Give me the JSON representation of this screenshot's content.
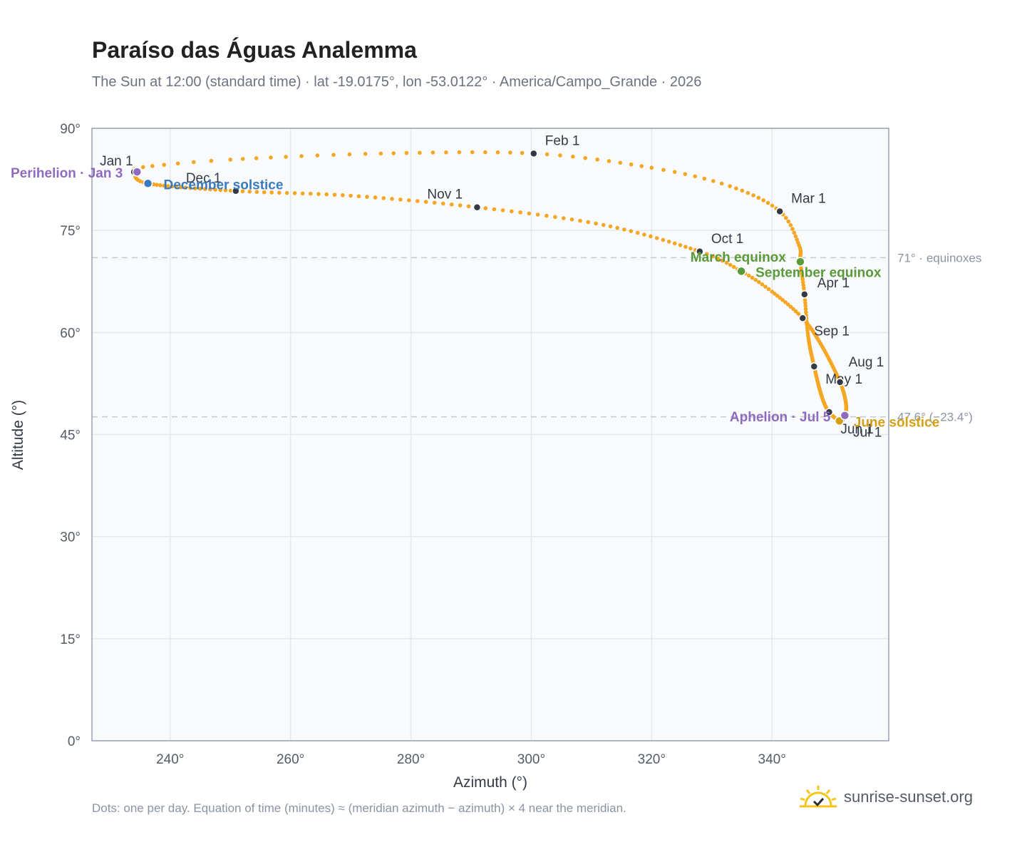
{
  "header": {
    "title": "Paraíso das Águas Analemma",
    "subtitle": "The Sun at 12:00 (standard time) · lat -19.0175°, lon -53.0122° · America/Campo_Grande · 2026"
  },
  "footer": {
    "note": "Dots: one per day. Equation of time (minutes) ≈ (meridian azimuth − azimuth) × 4 near the meridian.",
    "brand": "sunrise-sunset.org"
  },
  "colors": {
    "curve": "#f5a623",
    "month_marker": "#333a44",
    "equinox": "#5a9a3a",
    "december_solstice": "#3a7abf",
    "june_solstice": "#d4a017",
    "apsis": "#8e6bbf",
    "plot_bg": "#f8fafc",
    "grid": "#e5e9ef",
    "reference_line": "#c4c9d0"
  },
  "chart_data": {
    "type": "scatter",
    "xlabel": "Azimuth (°)",
    "ylabel": "Altitude (°)",
    "xlim": [
      227.0,
      359.4
    ],
    "ylim": [
      0,
      90
    ],
    "x_ticks": [
      240,
      260,
      280,
      300,
      320,
      340
    ],
    "x_tick_labels": [
      "240°",
      "260°",
      "280°",
      "300°",
      "320°",
      "340°"
    ],
    "y_ticks": [
      0,
      15,
      30,
      45,
      60,
      75,
      90
    ],
    "y_tick_labels": [
      "0°",
      "15°",
      "30°",
      "45°",
      "60°",
      "75°",
      "90°"
    ],
    "grid": true,
    "legend": "none",
    "curve_anchors": [
      {
        "day": 1,
        "az": 234.0,
        "alt": 83.6
      },
      {
        "day": 4,
        "az": 235.5,
        "alt": 84.3
      },
      {
        "day": 10,
        "az": 250.0,
        "alt": 85.4
      },
      {
        "day": 20,
        "az": 275.0,
        "alt": 86.3
      },
      {
        "day": 32,
        "az": 300.4,
        "alt": 86.3
      },
      {
        "day": 42,
        "az": 320.0,
        "alt": 84.2
      },
      {
        "day": 50,
        "az": 333.0,
        "alt": 81.5
      },
      {
        "day": 60,
        "az": 341.3,
        "alt": 77.8
      },
      {
        "day": 70,
        "az": 344.5,
        "alt": 72.8
      },
      {
        "day": 79,
        "az": 344.7,
        "alt": 70.4
      },
      {
        "day": 91,
        "az": 345.4,
        "alt": 65.6
      },
      {
        "day": 105,
        "az": 346.0,
        "alt": 59.5
      },
      {
        "day": 121,
        "az": 347.0,
        "alt": 55.0
      },
      {
        "day": 140,
        "az": 348.3,
        "alt": 50.5
      },
      {
        "day": 152,
        "az": 349.5,
        "alt": 48.3
      },
      {
        "day": 172,
        "az": 351.2,
        "alt": 47.0
      },
      {
        "day": 182,
        "az": 351.6,
        "alt": 47.2
      },
      {
        "day": 186,
        "az": 352.1,
        "alt": 47.8
      },
      {
        "day": 200,
        "az": 352.3,
        "alt": 49.5
      },
      {
        "day": 213,
        "az": 351.3,
        "alt": 52.7
      },
      {
        "day": 230,
        "az": 348.3,
        "alt": 58.0
      },
      {
        "day": 244,
        "az": 345.1,
        "alt": 62.1
      },
      {
        "day": 256,
        "az": 340.0,
        "alt": 66.0
      },
      {
        "day": 265,
        "az": 334.9,
        "alt": 69.0
      },
      {
        "day": 274,
        "az": 328.0,
        "alt": 71.9
      },
      {
        "day": 290,
        "az": 312.0,
        "alt": 75.8
      },
      {
        "day": 305,
        "az": 291.0,
        "alt": 78.4
      },
      {
        "day": 320,
        "az": 270.0,
        "alt": 80.1
      },
      {
        "day": 335,
        "az": 250.9,
        "alt": 80.8
      },
      {
        "day": 355,
        "az": 236.3,
        "alt": 81.9
      },
      {
        "day": 365,
        "az": 234.0,
        "alt": 83.6
      }
    ],
    "month_markers": [
      {
        "label": "Jan 1",
        "az": 234.0,
        "alt": 83.6
      },
      {
        "label": "Feb 1",
        "az": 300.4,
        "alt": 86.3
      },
      {
        "label": "Mar 1",
        "az": 341.3,
        "alt": 77.8
      },
      {
        "label": "Apr 1",
        "az": 345.4,
        "alt": 65.6
      },
      {
        "label": "May 1",
        "az": 347.0,
        "alt": 55.0
      },
      {
        "label": "Jun 1",
        "az": 349.5,
        "alt": 48.3
      },
      {
        "label": "Jul 1",
        "az": 351.6,
        "alt": 47.2
      },
      {
        "label": "Aug 1",
        "az": 351.3,
        "alt": 52.7
      },
      {
        "label": "Sep 1",
        "az": 345.1,
        "alt": 62.1
      },
      {
        "label": "Oct 1",
        "az": 328.0,
        "alt": 71.9
      },
      {
        "label": "Nov 1",
        "az": 291.0,
        "alt": 78.4
      },
      {
        "label": "Dec 1",
        "az": 250.9,
        "alt": 80.8
      }
    ],
    "events": [
      {
        "label": "March equinox",
        "az": 344.7,
        "alt": 70.4
      },
      {
        "label": "September equinox",
        "az": 334.9,
        "alt": 69.0
      },
      {
        "label": "December solstice",
        "az": 236.3,
        "alt": 81.9
      },
      {
        "label": "June solstice",
        "az": 351.2,
        "alt": 47.0
      },
      {
        "label": "Perihelion · Jan 3",
        "az": 234.5,
        "alt": 83.6
      },
      {
        "label": "Aphelion · Jul 5",
        "az": 352.1,
        "alt": 47.8
      }
    ],
    "reference_lines": [
      {
        "alt": 71,
        "label": "71° · equinoxes"
      },
      {
        "alt": 47.6,
        "label": "47.6° (−23.4°)"
      }
    ]
  }
}
